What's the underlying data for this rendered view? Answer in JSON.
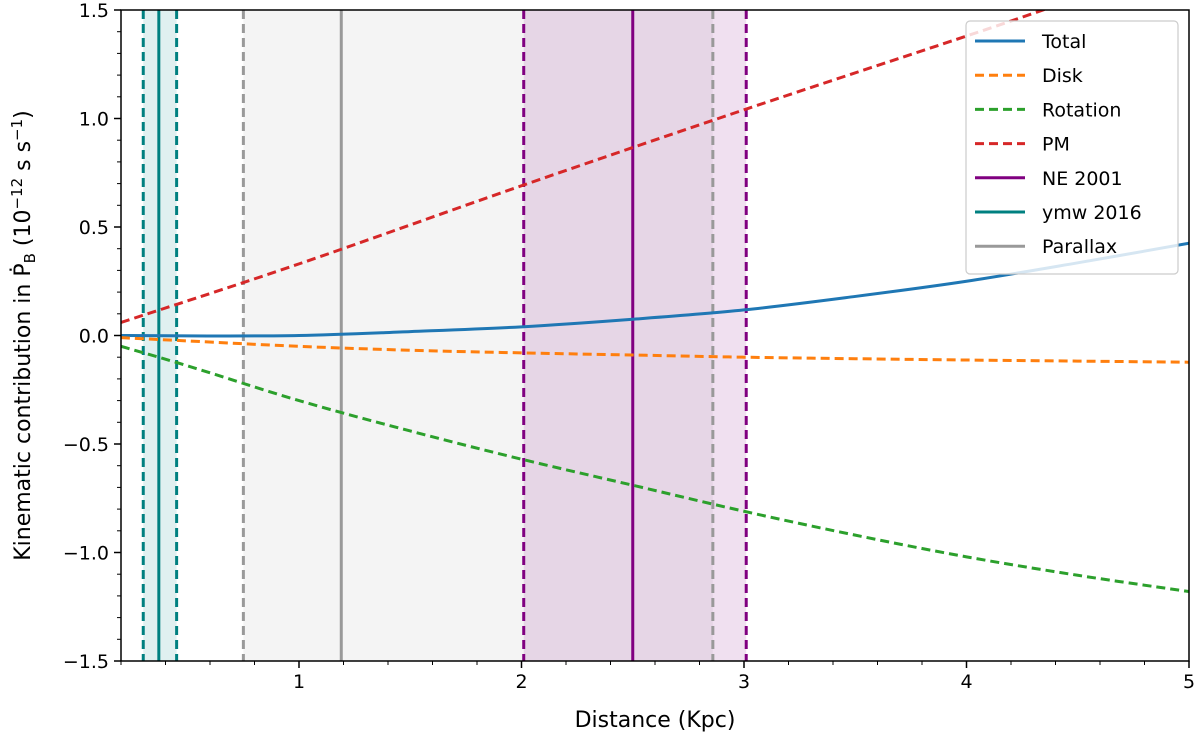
{
  "chart_data": {
    "type": "line",
    "xlabel": "Distance (Kpc)",
    "ylabel": "Kinematic contribution in Ṗ",
    "ylabel_sub": "B",
    "ylabel_units_prefix": " (10",
    "ylabel_units_exp": "−12",
    "ylabel_units_mid": " s s",
    "ylabel_units_exp2": "−1",
    "ylabel_units_suffix": ")",
    "xlim": [
      0.2,
      5.0
    ],
    "ylim": [
      -1.5,
      1.5
    ],
    "xticks": [
      {
        "value": 1,
        "label": "1"
      },
      {
        "value": 2,
        "label": "2"
      },
      {
        "value": 3,
        "label": "3"
      },
      {
        "value": 4,
        "label": "4"
      },
      {
        "value": 5,
        "label": "5"
      }
    ],
    "yticks": [
      {
        "value": -1.5,
        "label": "−1.5"
      },
      {
        "value": -1.0,
        "label": "−1.0"
      },
      {
        "value": -0.5,
        "label": "−0.5"
      },
      {
        "value": 0.0,
        "label": "0.0"
      },
      {
        "value": 0.5,
        "label": "0.5"
      },
      {
        "value": 1.0,
        "label": "1.0"
      },
      {
        "value": 1.5,
        "label": "1.5"
      }
    ],
    "series": [
      {
        "name": "Total",
        "color": "#1f77b4",
        "style": "solid",
        "x": [
          0.2,
          0.5,
          1.0,
          1.5,
          2.0,
          2.5,
          3.0,
          3.5,
          4.0,
          4.5,
          5.0
        ],
        "y": [
          0.0,
          -0.002,
          0.0,
          0.018,
          0.04,
          0.075,
          0.118,
          0.18,
          0.25,
          0.335,
          0.425
        ]
      },
      {
        "name": "Disk",
        "color": "#ff7f0e",
        "style": "dashed",
        "x": [
          0.2,
          0.5,
          1.0,
          1.5,
          2.0,
          2.5,
          3.0,
          3.5,
          4.0,
          4.5,
          5.0
        ],
        "y": [
          -0.01,
          -0.025,
          -0.05,
          -0.068,
          -0.08,
          -0.09,
          -0.1,
          -0.107,
          -0.113,
          -0.118,
          -0.123
        ]
      },
      {
        "name": "Rotation",
        "color": "#2ca02c",
        "style": "dashed",
        "x": [
          0.2,
          0.5,
          1.0,
          1.5,
          2.0,
          2.5,
          3.0,
          3.5,
          4.0,
          4.5,
          5.0
        ],
        "y": [
          -0.05,
          -0.14,
          -0.3,
          -0.44,
          -0.57,
          -0.69,
          -0.81,
          -0.92,
          -1.02,
          -1.105,
          -1.18
        ]
      },
      {
        "name": "PM",
        "color": "#d62728",
        "style": "dashed",
        "x": [
          0.2,
          1.0,
          2.0,
          3.0,
          4.0,
          4.4
        ],
        "y": [
          0.06,
          0.33,
          0.69,
          1.04,
          1.38,
          1.52
        ]
      }
    ],
    "vlines": [
      {
        "name": "NE 2001",
        "color": "#800080",
        "style": "solid",
        "x": 2.5
      },
      {
        "name": "NE 2001 lower",
        "color": "#800080",
        "style": "dashed",
        "x": 2.01
      },
      {
        "name": "NE 2001 upper",
        "color": "#800080",
        "style": "dashed",
        "x": 3.01
      },
      {
        "name": "ymw 2016",
        "color": "#008080",
        "style": "solid",
        "x": 0.37
      },
      {
        "name": "ymw 2016 lower",
        "color": "#008080",
        "style": "dashed",
        "x": 0.3
      },
      {
        "name": "ymw 2016 upper",
        "color": "#008080",
        "style": "dashed",
        "x": 0.45
      },
      {
        "name": "Parallax",
        "color": "#999999",
        "style": "solid",
        "x": 1.19
      },
      {
        "name": "Parallax lower",
        "color": "#999999",
        "style": "dashed",
        "x": 0.75
      },
      {
        "name": "Parallax upper",
        "color": "#999999",
        "style": "dashed",
        "x": 2.86
      }
    ],
    "bands": [
      {
        "name": "parallax-band",
        "color": "#cccccc",
        "opacity": 0.22,
        "x0": 0.75,
        "x1": 2.86
      },
      {
        "name": "ne2001-band",
        "color": "#800080",
        "opacity": 0.12,
        "x0": 2.01,
        "x1": 3.01
      },
      {
        "name": "ymw2016-band",
        "color": "#008080",
        "opacity": 0.12,
        "x0": 0.3,
        "x1": 0.45
      }
    ],
    "legend": {
      "position": "top-right",
      "entries": [
        {
          "label": "Total",
          "color": "#1f77b4",
          "style": "solid"
        },
        {
          "label": "Disk",
          "color": "#ff7f0e",
          "style": "dashed"
        },
        {
          "label": "Rotation",
          "color": "#2ca02c",
          "style": "dashed"
        },
        {
          "label": "PM",
          "color": "#d62728",
          "style": "dashed"
        },
        {
          "label": "NE 2001",
          "color": "#800080",
          "style": "solid"
        },
        {
          "label": "ymw 2016",
          "color": "#008080",
          "style": "solid"
        },
        {
          "label": "Parallax",
          "color": "#999999",
          "style": "solid"
        }
      ]
    }
  }
}
